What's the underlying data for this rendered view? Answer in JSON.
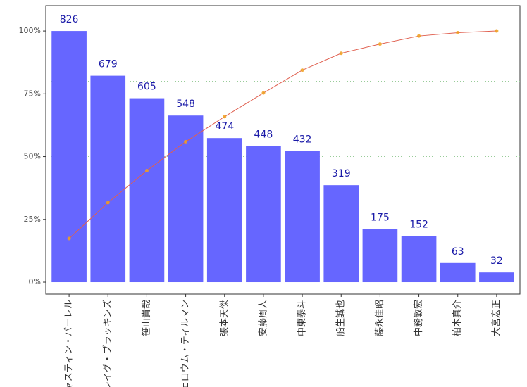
{
  "chart_data": {
    "type": "pareto",
    "categories": [
      "ジャスティン・バーレル",
      "クレイグ・ブラッキンズ",
      "笹山貴哉",
      "ジェロウム・ティルマン",
      "張本天傑",
      "安藤周人",
      "中東泰斗",
      "船生誠也",
      "藤永佳昭",
      "中務敏宏",
      "柏木真介",
      "大宮宏正"
    ],
    "series": [
      {
        "color": "#6666ff",
        "values": [
          826,
          679,
          605,
          548,
          474,
          448,
          432,
          319,
          175,
          152,
          63,
          32
        ]
      },
      {
        "type": "line",
        "axis": "y2",
        "color": "#e06050",
        "marker_color": "#f0a020",
        "values": [
          826,
          1505,
          2110,
          2658,
          3132,
          3580,
          4012,
          4331,
          4506,
          4658,
          4721,
          4753
        ]
      }
    ],
    "ylim": [
      -39.3,
      909.5
    ],
    "yticks": [
      {
        "value": 0,
        "label": "0%"
      },
      {
        "value": 206.5,
        "label": "25%"
      },
      {
        "value": 413,
        "label": "50%"
      },
      {
        "value": 619.5,
        "label": "75%"
      },
      {
        "value": 826,
        "label": "100%"
      }
    ],
    "y2lim": [
      -226,
      5233
    ],
    "reference_lines": [
      3802.4,
      2376.5
    ]
  }
}
